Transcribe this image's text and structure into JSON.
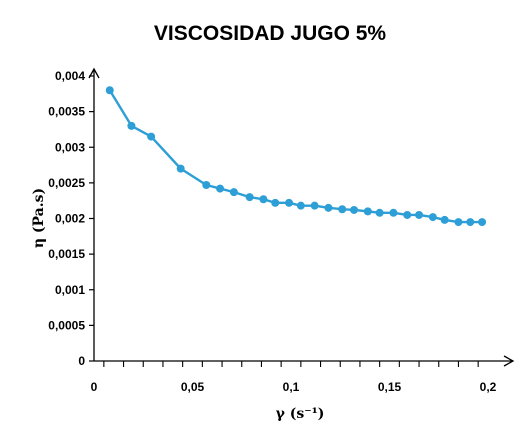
{
  "chart_data": {
    "type": "line",
    "title": "VISCOSIDAD JUGO 5%",
    "xlabel": "γ (s⁻¹)",
    "ylabel": "η (Pa.s)",
    "xlim": [
      0,
      0.2
    ],
    "ylim": [
      0,
      0.004
    ],
    "x_ticks": [
      0,
      0.05,
      0.1,
      0.15,
      0.2
    ],
    "x_tick_labels": [
      "0",
      "0,05",
      "0,1",
      "0,15",
      "0,2"
    ],
    "y_ticks": [
      0,
      0.0005,
      0.001,
      0.0015,
      0.002,
      0.0025,
      0.003,
      0.0035,
      0.004
    ],
    "y_tick_labels": [
      "0",
      "0,0005",
      "0,001",
      "0,0015",
      "0,002",
      "0,0025",
      "0,003",
      "0,0035",
      "0,004"
    ],
    "grid": false,
    "legend": "none",
    "series": [
      {
        "color": "#2e9fd6",
        "x": [
          0.008,
          0.019,
          0.029,
          0.044,
          0.057,
          0.064,
          0.071,
          0.079,
          0.086,
          0.092,
          0.099,
          0.105,
          0.112,
          0.119,
          0.126,
          0.132,
          0.139,
          0.145,
          0.152,
          0.159,
          0.165,
          0.172,
          0.178,
          0.185,
          0.191,
          0.197
        ],
        "y": [
          0.0038,
          0.0033,
          0.00315,
          0.0027,
          0.00247,
          0.00242,
          0.00237,
          0.0023,
          0.00227,
          0.00222,
          0.00222,
          0.00218,
          0.00218,
          0.00215,
          0.00213,
          0.00212,
          0.0021,
          0.00208,
          0.00208,
          0.00205,
          0.00205,
          0.00202,
          0.00198,
          0.00195,
          0.00195,
          0.00195
        ]
      }
    ]
  }
}
